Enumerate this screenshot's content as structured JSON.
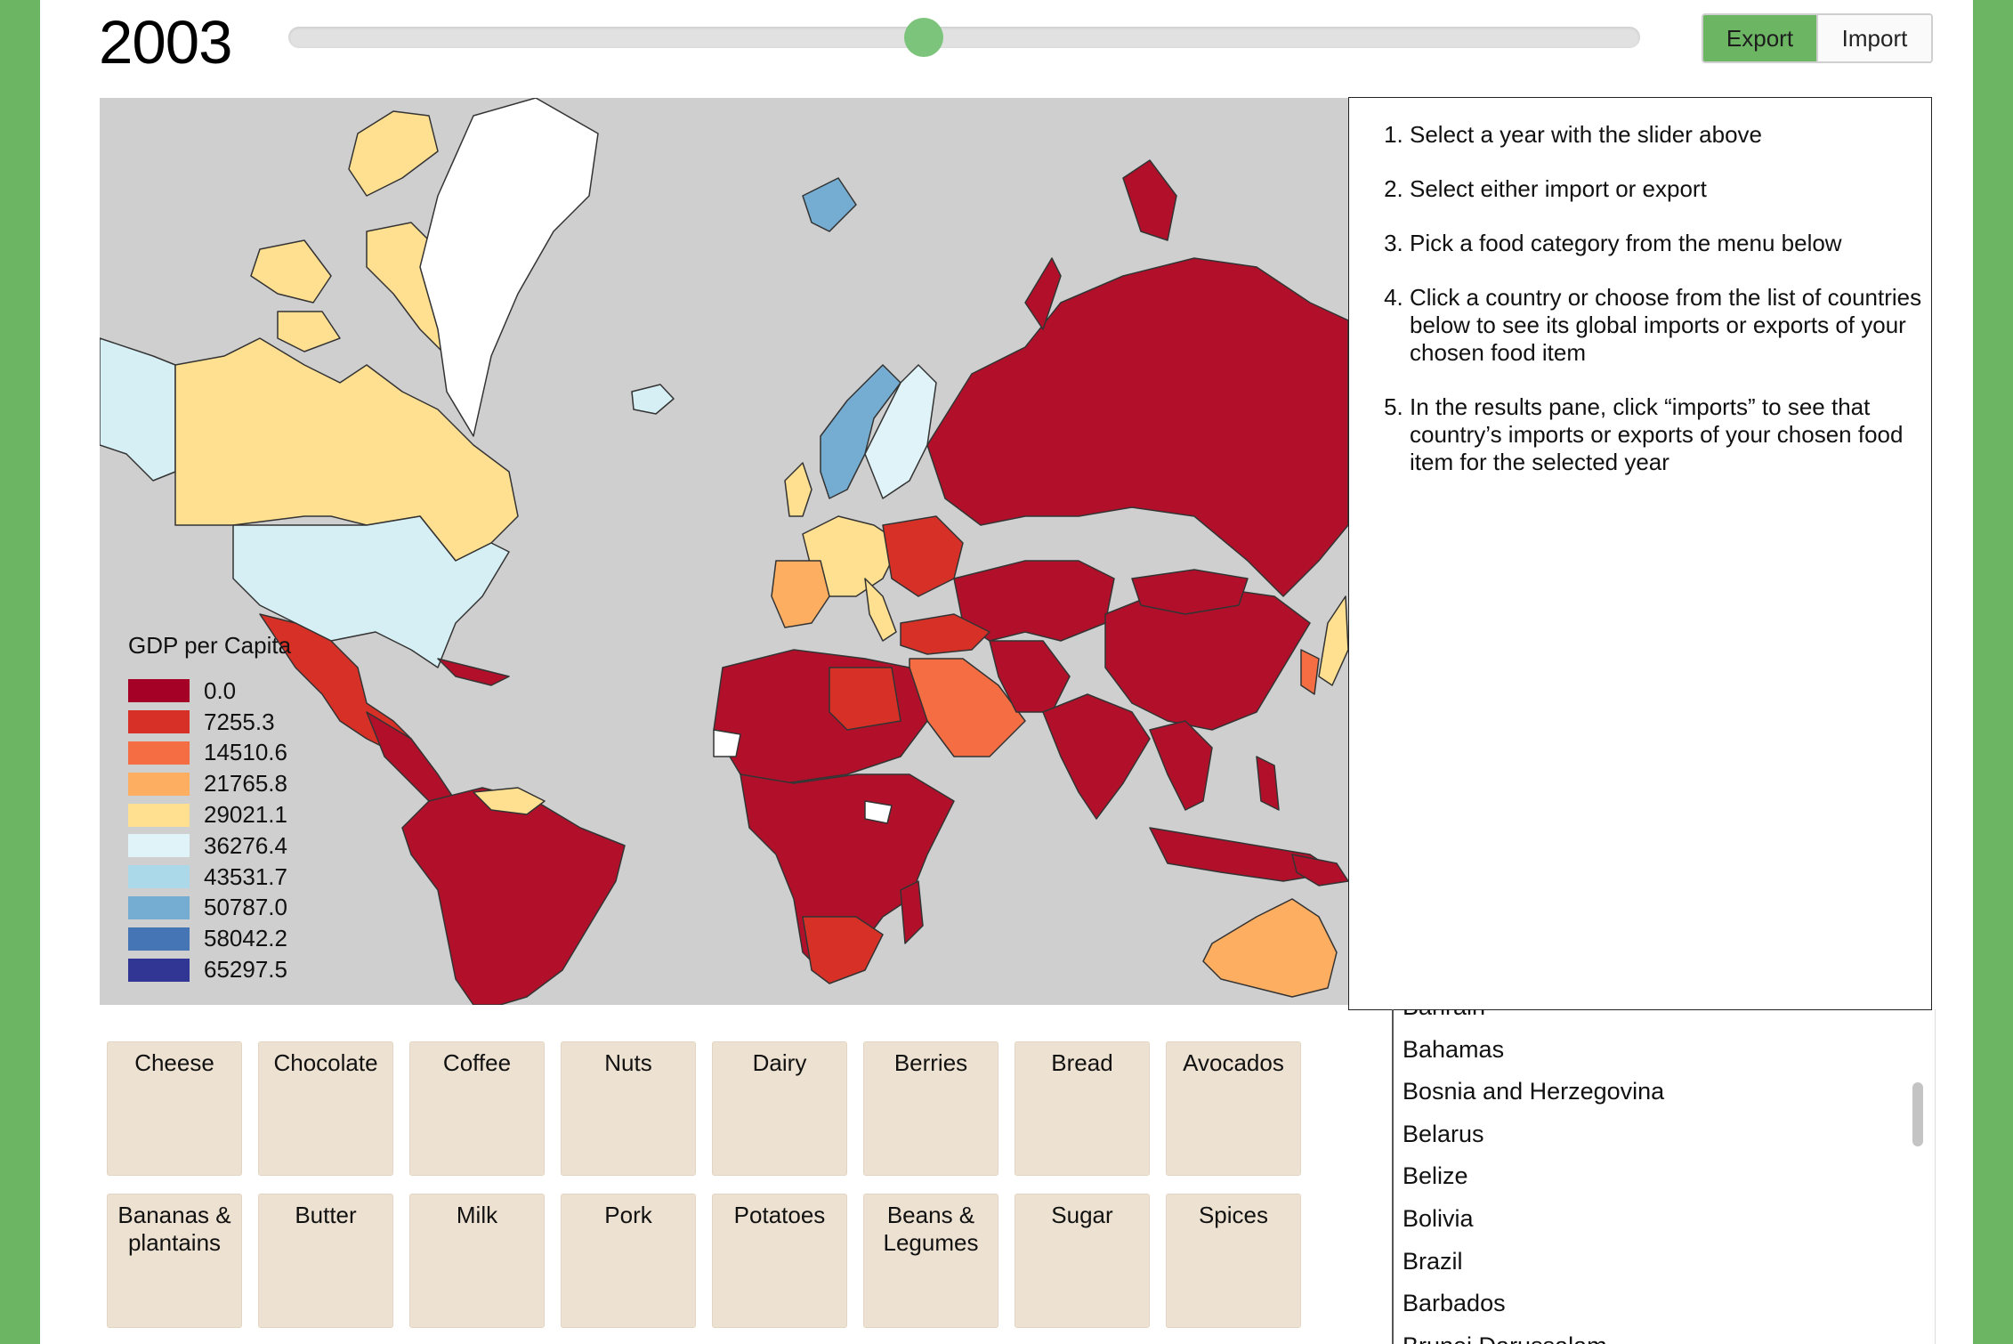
{
  "header": {
    "year": "2003",
    "slider": {
      "value": 2003,
      "position_fraction": 0.47
    },
    "toggle": {
      "export_label": "Export",
      "import_label": "Import",
      "active": "export"
    }
  },
  "legend": {
    "title": "GDP per Capita",
    "items": [
      {
        "label": "0.0",
        "color": "#a50026"
      },
      {
        "label": "7255.3",
        "color": "#d73027"
      },
      {
        "label": "14510.6",
        "color": "#f46d43"
      },
      {
        "label": "21765.8",
        "color": "#fdae61"
      },
      {
        "label": "29021.1",
        "color": "#fee090"
      },
      {
        "label": "36276.4",
        "color": "#e0f3f8"
      },
      {
        "label": "43531.7",
        "color": "#abd9e9"
      },
      {
        "label": "50787.0",
        "color": "#74add1"
      },
      {
        "label": "58042.2",
        "color": "#4575b4"
      },
      {
        "label": "65297.5",
        "color": "#313695"
      }
    ]
  },
  "instructions": [
    "Select a year with the slider above",
    "Select either import or export",
    "Pick a food category from the menu below",
    "Click a country or choose from the list of countries below to see its global imports or exports of your chosen food item",
    "In the results pane, click “imports” to see that country’s imports or exports of your chosen food item for the selected year"
  ],
  "countries": [
    "Bahrain",
    "Bahamas",
    "Bosnia and Herzegovina",
    "Belarus",
    "Belize",
    "Bolivia",
    "Brazil",
    "Barbados",
    "Brunei Darussalam"
  ],
  "foods": [
    "Cheese",
    "Chocolate",
    "Coffee",
    "Nuts",
    "Dairy",
    "Berries",
    "Bread",
    "Avocados",
    "Bananas & plantains",
    "Butter",
    "Milk",
    "Pork",
    "Potatoes",
    "Beans & Legumes",
    "Sugar",
    "Spices"
  ],
  "colors": {
    "frame_green": "#6cb563",
    "map_background": "#cfcfcf",
    "food_tile": "#ede1d1",
    "slider_thumb": "#7cc47c"
  }
}
